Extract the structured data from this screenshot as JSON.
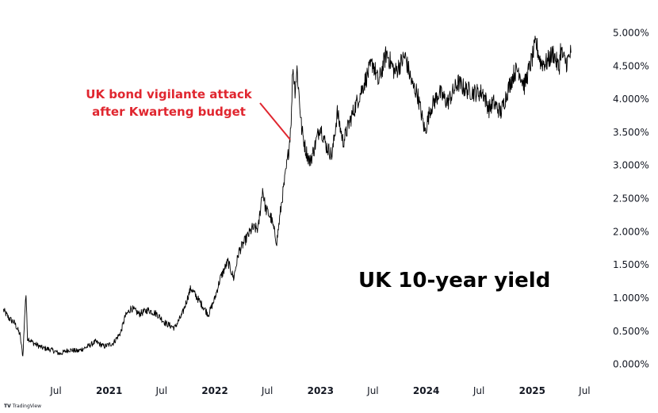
{
  "chart_data": {
    "type": "line",
    "title": "UK 10-year yield",
    "annotation": {
      "lines": [
        "UK bond vigilante attack",
        "after Kwarteng budget"
      ],
      "points_to": "2022-09-27"
    },
    "x_ticks": [
      {
        "label": "Jul",
        "date": "2020-07-01",
        "year": false
      },
      {
        "label": "2021",
        "date": "2021-01-01",
        "year": true
      },
      {
        "label": "Jul",
        "date": "2021-07-01",
        "year": false
      },
      {
        "label": "2022",
        "date": "2022-01-01",
        "year": true
      },
      {
        "label": "Jul",
        "date": "2022-07-01",
        "year": false
      },
      {
        "label": "2023",
        "date": "2023-01-01",
        "year": true
      },
      {
        "label": "Jul",
        "date": "2023-07-01",
        "year": false
      },
      {
        "label": "2024",
        "date": "2024-01-01",
        "year": true
      },
      {
        "label": "Jul",
        "date": "2024-07-01",
        "year": false
      },
      {
        "label": "2025",
        "date": "2025-01-01",
        "year": true
      },
      {
        "label": "Jul",
        "date": "2025-07-01",
        "year": false
      }
    ],
    "y_ticks": [
      {
        "label": "5.000%",
        "value": 5.0
      },
      {
        "label": "4.500%",
        "value": 4.5
      },
      {
        "label": "4.000%",
        "value": 4.0
      },
      {
        "label": "3.500%",
        "value": 3.5
      },
      {
        "label": "3.000%",
        "value": 3.0
      },
      {
        "label": "2.500%",
        "value": 2.5
      },
      {
        "label": "2.000%",
        "value": 2.0
      },
      {
        "label": "1.500%",
        "value": 1.5
      },
      {
        "label": "1.000%",
        "value": 1.0
      },
      {
        "label": "0.500%",
        "value": 0.5
      },
      {
        "label": "0.000%",
        "value": 0.0
      }
    ],
    "ylim": [
      -0.1,
      5.4
    ],
    "grid": false,
    "series": [
      {
        "color": "#000000",
        "points": [
          [
            "2020-01-02",
            0.82
          ],
          [
            "2020-01-20",
            0.7
          ],
          [
            "2020-02-10",
            0.62
          ],
          [
            "2020-02-28",
            0.45
          ],
          [
            "2020-03-09",
            0.12
          ],
          [
            "2020-03-18",
            0.98
          ],
          [
            "2020-03-20",
            1.05
          ],
          [
            "2020-03-25",
            0.4
          ],
          [
            "2020-04-15",
            0.32
          ],
          [
            "2020-05-15",
            0.25
          ],
          [
            "2020-06-15",
            0.22
          ],
          [
            "2020-07-15",
            0.16
          ],
          [
            "2020-08-15",
            0.22
          ],
          [
            "2020-09-15",
            0.2
          ],
          [
            "2020-10-15",
            0.26
          ],
          [
            "2020-11-15",
            0.34
          ],
          [
            "2020-12-15",
            0.27
          ],
          [
            "2021-01-15",
            0.32
          ],
          [
            "2021-02-10",
            0.48
          ],
          [
            "2021-02-25",
            0.72
          ],
          [
            "2021-03-18",
            0.85
          ],
          [
            "2021-04-15",
            0.76
          ],
          [
            "2021-05-15",
            0.82
          ],
          [
            "2021-06-15",
            0.76
          ],
          [
            "2021-07-15",
            0.62
          ],
          [
            "2021-08-15",
            0.55
          ],
          [
            "2021-09-10",
            0.75
          ],
          [
            "2021-10-10",
            1.15
          ],
          [
            "2021-10-25",
            1.05
          ],
          [
            "2021-11-20",
            0.88
          ],
          [
            "2021-12-10",
            0.75
          ],
          [
            "2021-12-31",
            0.98
          ],
          [
            "2022-01-20",
            1.3
          ],
          [
            "2022-02-15",
            1.55
          ],
          [
            "2022-03-07",
            1.3
          ],
          [
            "2022-03-25",
            1.7
          ],
          [
            "2022-04-20",
            1.9
          ],
          [
            "2022-05-10",
            2.05
          ],
          [
            "2022-05-31",
            2.05
          ],
          [
            "2022-06-15",
            2.65
          ],
          [
            "2022-06-25",
            2.35
          ],
          [
            "2022-07-15",
            2.2
          ],
          [
            "2022-07-28",
            1.95
          ],
          [
            "2022-08-03",
            1.85
          ],
          [
            "2022-08-20",
            2.45
          ],
          [
            "2022-09-05",
            2.95
          ],
          [
            "2022-09-15",
            3.3
          ],
          [
            "2022-09-23",
            3.8
          ],
          [
            "2022-09-27",
            4.5
          ],
          [
            "2022-10-05",
            4.15
          ],
          [
            "2022-10-12",
            4.45
          ],
          [
            "2022-10-20",
            4.0
          ],
          [
            "2022-10-28",
            3.55
          ],
          [
            "2022-11-10",
            3.25
          ],
          [
            "2022-11-25",
            3.05
          ],
          [
            "2022-12-10",
            3.25
          ],
          [
            "2022-12-31",
            3.6
          ],
          [
            "2023-01-20",
            3.3
          ],
          [
            "2023-02-10",
            3.15
          ],
          [
            "2023-02-28",
            3.8
          ],
          [
            "2023-03-20",
            3.35
          ],
          [
            "2023-04-15",
            3.7
          ],
          [
            "2023-05-15",
            4.05
          ],
          [
            "2023-06-15",
            4.4
          ],
          [
            "2023-07-01",
            4.55
          ],
          [
            "2023-07-20",
            4.25
          ],
          [
            "2023-08-17",
            4.7
          ],
          [
            "2023-09-15",
            4.4
          ],
          [
            "2023-10-20",
            4.65
          ],
          [
            "2023-11-15",
            4.2
          ],
          [
            "2023-12-01",
            4.1
          ],
          [
            "2023-12-28",
            3.5
          ],
          [
            "2024-01-15",
            3.85
          ],
          [
            "2024-02-15",
            4.1
          ],
          [
            "2024-03-15",
            3.95
          ],
          [
            "2024-04-20",
            4.25
          ],
          [
            "2024-05-15",
            4.15
          ],
          [
            "2024-06-15",
            4.1
          ],
          [
            "2024-07-15",
            4.1
          ],
          [
            "2024-08-05",
            3.85
          ],
          [
            "2024-08-20",
            3.95
          ],
          [
            "2024-09-15",
            3.8
          ],
          [
            "2024-10-10",
            4.15
          ],
          [
            "2024-10-31",
            4.4
          ],
          [
            "2024-11-15",
            4.45
          ],
          [
            "2024-12-05",
            4.2
          ],
          [
            "2024-12-31",
            4.6
          ],
          [
            "2025-01-14",
            4.85
          ],
          [
            "2025-01-31",
            4.55
          ],
          [
            "2025-02-20",
            4.55
          ],
          [
            "2025-03-15",
            4.7
          ],
          [
            "2025-04-04",
            4.45
          ],
          [
            "2025-04-09",
            4.75
          ],
          [
            "2025-04-20",
            4.6
          ],
          [
            "2025-05-01",
            4.55
          ],
          [
            "2025-05-15",
            4.7
          ]
        ]
      }
    ]
  },
  "branding": {
    "name": "TradingView",
    "logo": "TV"
  }
}
